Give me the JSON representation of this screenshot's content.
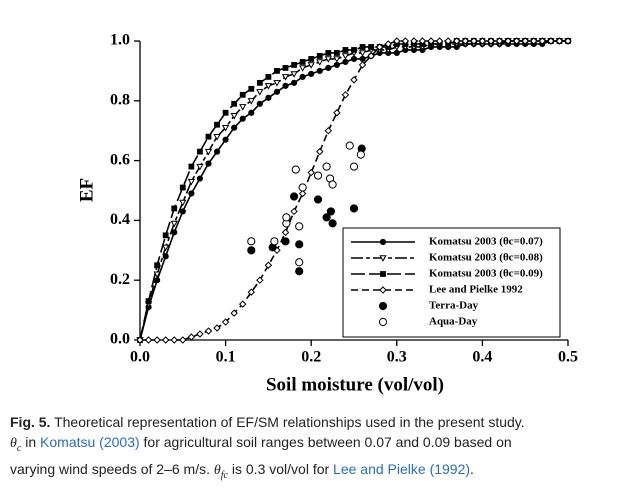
{
  "chart_data": {
    "type": "line",
    "xlabel": "Soil moisture (vol/vol)",
    "ylabel": "EF",
    "xlim": [
      0,
      0.5
    ],
    "ylim": [
      0,
      1
    ],
    "xticks": [
      {
        "value": 0,
        "label": "0.0"
      },
      0.1,
      0.2,
      0.3,
      0.4,
      0.5
    ],
    "yticks": [
      {
        "value": 0,
        "label": "0.0"
      },
      0.2,
      0.4,
      0.6,
      0.8,
      {
        "value": 1,
        "label": "1.0"
      }
    ],
    "legend": "lower right",
    "x": [
      0,
      0.01,
      0.02,
      0.03,
      0.04,
      0.05,
      0.06,
      0.07,
      0.08,
      0.09,
      0.1,
      0.11,
      0.12,
      0.13,
      0.14,
      0.15,
      0.16,
      0.17,
      0.18,
      0.19,
      0.2,
      0.21,
      0.22,
      0.23,
      0.24,
      0.25,
      0.26,
      0.27,
      0.28,
      0.29,
      0.3,
      0.31,
      0.32,
      0.33,
      0.34,
      0.35,
      0.36,
      0.37,
      0.38,
      0.39,
      0.4,
      0.41,
      0.42,
      0.43,
      0.44,
      0.45,
      0.46,
      0.47,
      0.48,
      0.49,
      0.5
    ],
    "series": [
      {
        "name": "Komatsu 2003 (θc=0.07)",
        "color": "#000000",
        "dash": "solid",
        "marker": "circle-filled",
        "values": [
          0,
          0.11,
          0.2,
          0.28,
          0.36,
          0.43,
          0.49,
          0.54,
          0.59,
          0.63,
          0.67,
          0.71,
          0.74,
          0.76,
          0.79,
          0.81,
          0.83,
          0.85,
          0.86,
          0.88,
          0.89,
          0.9,
          0.91,
          0.92,
          0.93,
          0.94,
          0.94,
          0.95,
          0.96,
          0.96,
          0.96,
          0.97,
          0.97,
          0.97,
          0.98,
          0.98,
          0.98,
          0.98,
          0.99,
          0.99,
          0.99,
          0.99,
          0.99,
          0.99,
          0.99,
          0.99,
          0.99,
          0.99,
          1,
          1,
          1
        ]
      },
      {
        "name": "Komatsu 2003 (θc=0.08)",
        "color": "#000000",
        "dash": "dash-gap",
        "marker": "triangle-open",
        "values": [
          0,
          0.12,
          0.22,
          0.31,
          0.39,
          0.46,
          0.53,
          0.58,
          0.63,
          0.68,
          0.71,
          0.75,
          0.78,
          0.8,
          0.83,
          0.85,
          0.86,
          0.88,
          0.89,
          0.91,
          0.92,
          0.93,
          0.94,
          0.94,
          0.95,
          0.96,
          0.96,
          0.97,
          0.97,
          0.97,
          0.98,
          0.98,
          0.98,
          0.98,
          0.99,
          0.99,
          0.99,
          0.99,
          0.99,
          0.99,
          0.99,
          0.99,
          0.99,
          1,
          1,
          1,
          1,
          1,
          1,
          1,
          1
        ]
      },
      {
        "name": "Komatsu 2003 (θc=0.09)",
        "color": "#000000",
        "dash": "long-dash",
        "marker": "square-filled",
        "values": [
          0,
          0.13,
          0.25,
          0.35,
          0.44,
          0.51,
          0.58,
          0.63,
          0.68,
          0.72,
          0.76,
          0.79,
          0.82,
          0.84,
          0.86,
          0.88,
          0.9,
          0.91,
          0.92,
          0.93,
          0.94,
          0.95,
          0.96,
          0.96,
          0.97,
          0.97,
          0.98,
          0.98,
          0.98,
          0.98,
          0.99,
          0.99,
          0.99,
          0.99,
          0.99,
          0.99,
          0.99,
          1,
          1,
          1,
          1,
          1,
          1,
          1,
          1,
          1,
          1,
          1,
          1,
          1,
          1
        ]
      },
      {
        "name": "Lee and Pielke 1992",
        "color": "#000000",
        "dash": "dash",
        "marker": "diamond-open",
        "values": [
          0,
          0,
          0,
          0,
          0,
          0,
          0.01,
          0.02,
          0.03,
          0.04,
          0.06,
          0.09,
          0.12,
          0.16,
          0.2,
          0.25,
          0.3,
          0.36,
          0.43,
          0.49,
          0.56,
          0.63,
          0.7,
          0.76,
          0.82,
          0.87,
          0.92,
          0.95,
          0.98,
          0.99,
          1,
          1,
          1,
          1,
          1,
          1,
          1,
          1,
          1,
          1,
          1,
          1,
          1,
          1,
          1,
          1,
          1,
          1,
          1,
          1,
          1
        ]
      },
      {
        "name": "Terra-Day",
        "color": "#000000",
        "marker": "circle-filled",
        "line": false,
        "x": [
          0.13,
          0.155,
          0.17,
          0.18,
          0.186,
          0.186,
          0.208,
          0.218,
          0.223,
          0.225,
          0.25,
          0.259
        ],
        "values": [
          0.3,
          0.31,
          0.33,
          0.48,
          0.32,
          0.23,
          0.47,
          0.41,
          0.43,
          0.39,
          0.44,
          0.64
        ]
      },
      {
        "name": "Aqua-Day",
        "color": "#000000",
        "marker": "circle-open",
        "line": false,
        "x": [
          0.13,
          0.157,
          0.171,
          0.171,
          0.182,
          0.186,
          0.186,
          0.19,
          0.208,
          0.218,
          0.222,
          0.225,
          0.25,
          0.258,
          0.245
        ],
        "values": [
          0.33,
          0.33,
          0.39,
          0.41,
          0.57,
          0.38,
          0.26,
          0.51,
          0.55,
          0.58,
          0.54,
          0.52,
          0.58,
          0.62,
          0.65
        ]
      }
    ]
  },
  "caption": {
    "lines": [
      [
        {
          "text": "Fig. 5.",
          "style": "bold"
        },
        {
          "text": " Theoretical representation of EF/SM relationships used in the present study."
        }
      ],
      [
        {
          "text": "θ",
          "style": "italic"
        },
        {
          "text": "c",
          "style": "sub"
        },
        {
          "text": " in "
        },
        {
          "text": "Komatsu (2003)",
          "style": "link"
        },
        {
          "text": " for agricultural soil ranges between 0.07 and 0.09 based on"
        }
      ],
      [
        {
          "text": "varying wind speeds of 2–6 m/s. "
        },
        {
          "text": "θ",
          "style": "italic"
        },
        {
          "text": "fc",
          "style": "sub"
        },
        {
          "text": " is 0.3 vol/vol for "
        },
        {
          "text": "Lee and Pielke (1992)",
          "style": "link"
        },
        {
          "text": "."
        }
      ]
    ]
  }
}
